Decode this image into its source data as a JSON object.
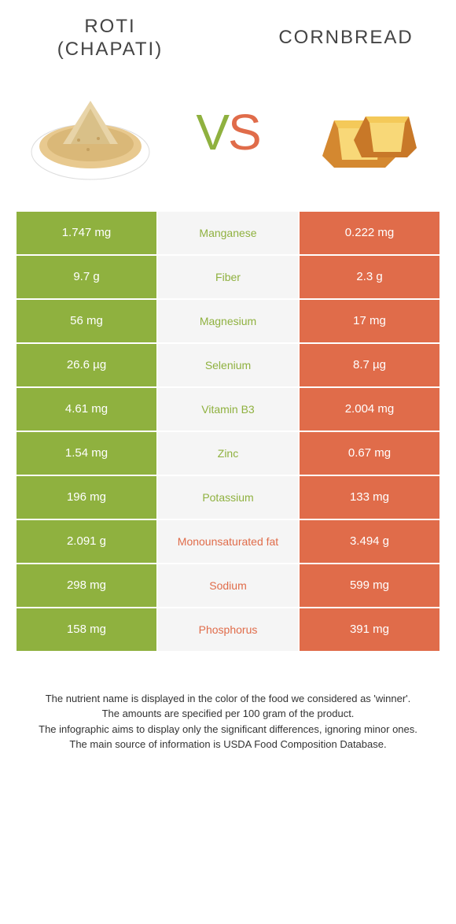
{
  "colors": {
    "left": "#8fb13f",
    "right": "#e06c4a",
    "mid_bg": "#f5f5f5",
    "text_dark": "#444444",
    "white": "#ffffff"
  },
  "header": {
    "left_line1": "ROTI",
    "left_line2": "(CHAPATI)",
    "right": "CORNBREAD"
  },
  "vs": {
    "v": "V",
    "s": "S"
  },
  "rows": [
    {
      "left": "1.747 mg",
      "label": "Manganese",
      "right": "0.222 mg",
      "winner": "left"
    },
    {
      "left": "9.7 g",
      "label": "Fiber",
      "right": "2.3 g",
      "winner": "left"
    },
    {
      "left": "56 mg",
      "label": "Magnesium",
      "right": "17 mg",
      "winner": "left"
    },
    {
      "left": "26.6 µg",
      "label": "Selenium",
      "right": "8.7 µg",
      "winner": "left"
    },
    {
      "left": "4.61 mg",
      "label": "Vitamin B3",
      "right": "2.004 mg",
      "winner": "left"
    },
    {
      "left": "1.54 mg",
      "label": "Zinc",
      "right": "0.67 mg",
      "winner": "left"
    },
    {
      "left": "196 mg",
      "label": "Potassium",
      "right": "133 mg",
      "winner": "left"
    },
    {
      "left": "2.091 g",
      "label": "Monounsaturated fat",
      "right": "3.494 g",
      "winner": "right"
    },
    {
      "left": "298 mg",
      "label": "Sodium",
      "right": "599 mg",
      "winner": "right"
    },
    {
      "left": "158 mg",
      "label": "Phosphorus",
      "right": "391 mg",
      "winner": "right"
    }
  ],
  "footer": {
    "line1": "The nutrient name is displayed in the color of the food we considered as 'winner'.",
    "line2": "The amounts are specified per 100 gram of the product.",
    "line3": "The infographic aims to display only the significant differences, ignoring minor ones.",
    "line4": "The main source of information is USDA Food Composition Database."
  }
}
